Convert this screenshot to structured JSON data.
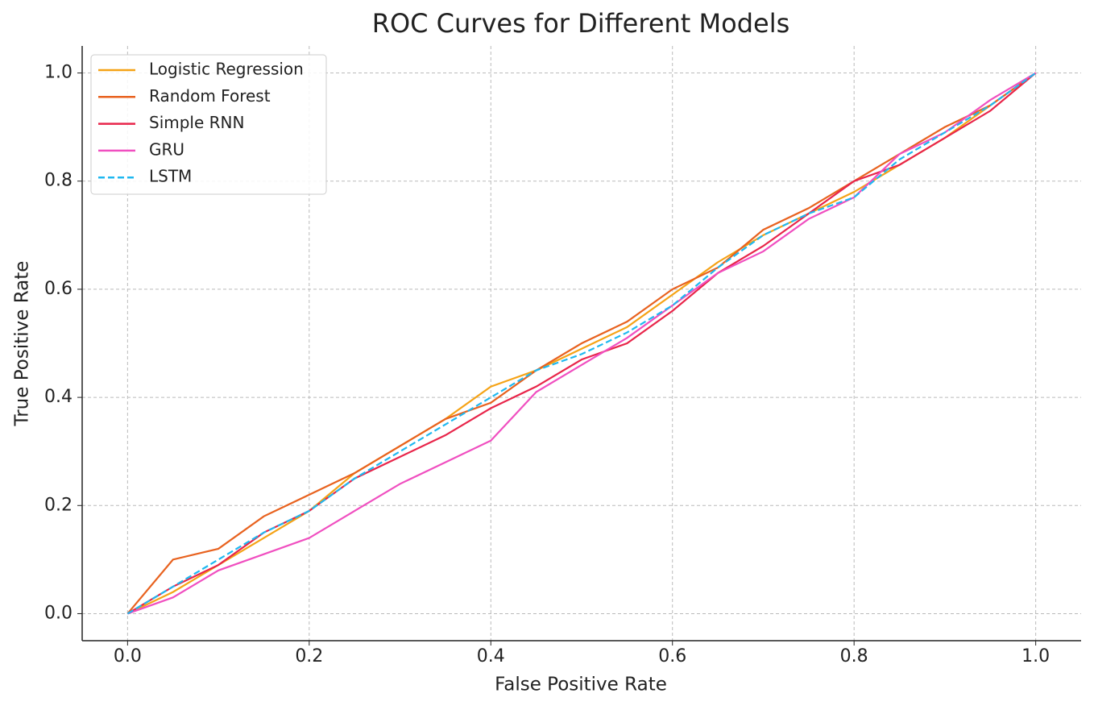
{
  "chart_data": {
    "type": "line",
    "title": "ROC Curves for Different Models",
    "x_label": "False Positive Rate",
    "y_label": "True Positive Rate",
    "x": [
      0,
      0.05,
      0.1,
      0.15,
      0.2,
      0.25,
      0.3,
      0.35,
      0.4,
      0.45,
      0.5,
      0.55,
      0.6,
      0.65,
      0.7,
      0.75,
      0.8,
      0.85,
      0.9,
      0.95,
      1
    ],
    "series": [
      {
        "name": "Logistic Regression",
        "color": "#f5a316",
        "line_style": "solid",
        "values": [
          0,
          0.04,
          0.09,
          0.14,
          0.19,
          0.26,
          0.31,
          0.36,
          0.42,
          0.45,
          0.49,
          0.53,
          0.59,
          0.65,
          0.7,
          0.74,
          0.78,
          0.83,
          0.88,
          0.94,
          1
        ]
      },
      {
        "name": "Random Forest",
        "color": "#e8621f",
        "line_style": "solid",
        "values": [
          0,
          0.1,
          0.12,
          0.18,
          0.22,
          0.26,
          0.31,
          0.36,
          0.39,
          0.45,
          0.5,
          0.54,
          0.6,
          0.64,
          0.71,
          0.75,
          0.8,
          0.85,
          0.9,
          0.94,
          1
        ]
      },
      {
        "name": "Simple RNN",
        "color": "#e8254a",
        "line_style": "solid",
        "values": [
          0,
          0.05,
          0.09,
          0.15,
          0.19,
          0.25,
          0.29,
          0.33,
          0.38,
          0.42,
          0.47,
          0.5,
          0.56,
          0.63,
          0.68,
          0.74,
          0.8,
          0.83,
          0.88,
          0.93,
          1
        ]
      },
      {
        "name": "GRU",
        "color": "#f04fc0",
        "line_style": "solid",
        "values": [
          0,
          0.03,
          0.08,
          0.11,
          0.14,
          0.19,
          0.24,
          0.28,
          0.32,
          0.41,
          0.46,
          0.51,
          0.57,
          0.63,
          0.67,
          0.73,
          0.77,
          0.85,
          0.89,
          0.95,
          1
        ]
      },
      {
        "name": "LSTM",
        "color": "#1fb8f0",
        "line_style": "dashed",
        "values": [
          0,
          0.05,
          0.1,
          0.15,
          0.19,
          0.25,
          0.3,
          0.35,
          0.4,
          0.45,
          0.48,
          0.52,
          0.57,
          0.64,
          0.7,
          0.74,
          0.77,
          0.84,
          0.89,
          0.94,
          1
        ]
      }
    ],
    "xlim": [
      -0.05,
      1.05
    ],
    "ylim": [
      -0.05,
      1.05
    ],
    "xticks": [
      {
        "value": 0,
        "label": "0.0"
      },
      0.2,
      0.4,
      0.6,
      0.8,
      {
        "value": 1,
        "label": "1.0"
      }
    ],
    "yticks": [
      {
        "value": 0,
        "label": "0.0"
      },
      0.2,
      0.4,
      0.6,
      0.8,
      {
        "value": 1,
        "label": "1.0"
      }
    ],
    "grid": true,
    "legend": "upper left"
  }
}
